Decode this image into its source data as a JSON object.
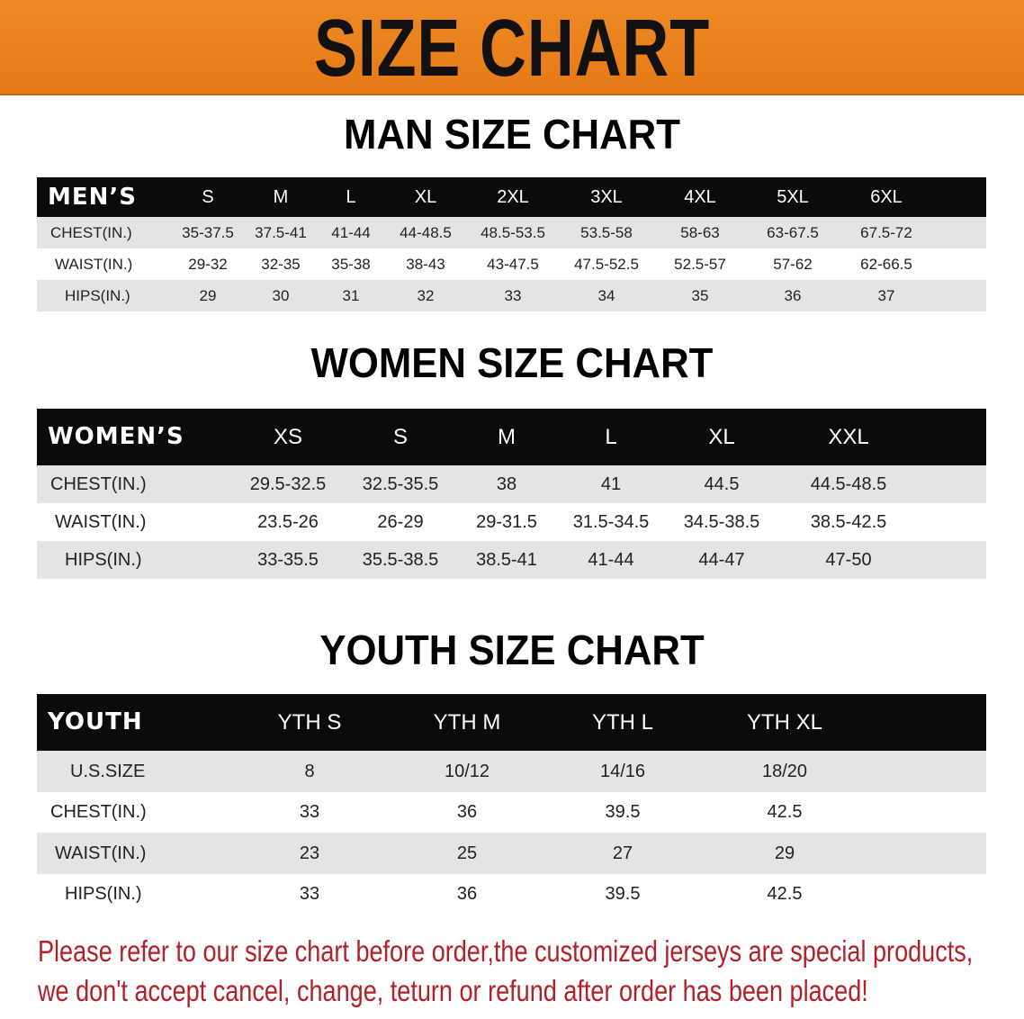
{
  "banner": {
    "title": "SIZE CHART"
  },
  "colors": {
    "banner": "#e98320",
    "header": "#0b0b0b",
    "row_alt": "#e4e4e4",
    "note": "#b3202a"
  },
  "men": {
    "title": "MAN SIZE CHART",
    "header_label": "MEN’S",
    "sizes": [
      "S",
      "M",
      "L",
      "XL",
      "2XL",
      "3XL",
      "4XL",
      "5XL",
      "6XL"
    ],
    "rows": [
      {
        "label": "CHEST(IN.)",
        "values": [
          "35-37.5",
          "37.5-41",
          "41-44",
          "44-48.5",
          "48.5-53.5",
          "53.5-58",
          "58-63",
          "63-67.5",
          "67.5-72"
        ]
      },
      {
        "label": "WAIST(IN.)",
        "values": [
          "29-32",
          "32-35",
          "35-38",
          "38-43",
          "43-47.5",
          "47.5-52.5",
          "52.5-57",
          "57-62",
          "62-66.5"
        ]
      },
      {
        "label": "HIPS(IN.)",
        "values": [
          "29",
          "30",
          "31",
          "32",
          "33",
          "34",
          "35",
          "36",
          "37"
        ]
      }
    ]
  },
  "women": {
    "title": "WOMEN SIZE CHART",
    "header_label": "WOMEN’S",
    "sizes": [
      "XS",
      "S",
      "M",
      "L",
      "XL",
      "XXL"
    ],
    "rows": [
      {
        "label": "CHEST(IN.)",
        "values": [
          "29.5-32.5",
          "32.5-35.5",
          "38",
          "41",
          "44.5",
          "44.5-48.5"
        ]
      },
      {
        "label": "WAIST(IN.)",
        "values": [
          "23.5-26",
          "26-29",
          "29-31.5",
          "31.5-34.5",
          "34.5-38.5",
          "38.5-42.5"
        ]
      },
      {
        "label": "HIPS(IN.)",
        "values": [
          "33-35.5",
          "35.5-38.5",
          "38.5-41",
          "41-44",
          "44-47",
          "47-50"
        ]
      }
    ]
  },
  "youth": {
    "title": "YOUTH SIZE CHART",
    "header_label": "YOUTH",
    "sizes": [
      "YTH S",
      "YTH M",
      "YTH L",
      "YTH XL"
    ],
    "rows": [
      {
        "label": "U.S.SIZE",
        "values": [
          "8",
          "10/12",
          "14/16",
          "18/20"
        ]
      },
      {
        "label": "CHEST(IN.)",
        "values": [
          "33",
          "36",
          "39.5",
          "42.5"
        ]
      },
      {
        "label": "WAIST(IN.)",
        "values": [
          "23",
          "25",
          "27",
          "29"
        ]
      },
      {
        "label": "HIPS(IN.)",
        "values": [
          "33",
          "36",
          "39.5",
          "42.5"
        ]
      }
    ]
  },
  "note": {
    "line1": "Please refer to our size chart before order,the customized jerseys are special products,",
    "line2": "we don't accept cancel, change, teturn or refund after order has been placed!"
  }
}
